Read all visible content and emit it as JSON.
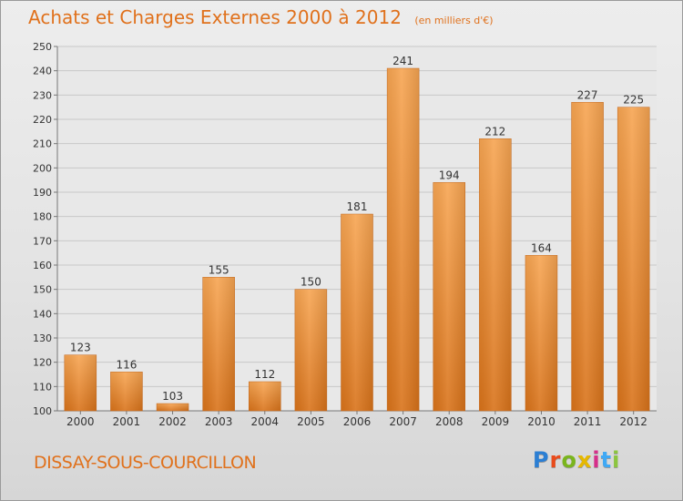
{
  "header": {
    "title": "Achats et Charges Externes 2000 à 2012",
    "subtitle": "(en milliers d'€)"
  },
  "footer": {
    "place": "DISSAY-SOUS-COURCILLON",
    "brand": "Proxiti",
    "brand_colors": [
      "#2b7fd4",
      "#e94b1b",
      "#7ab51d",
      "#e6b800",
      "#d62f8a",
      "#3fa9f5",
      "#8cc63f"
    ]
  },
  "chart_data": {
    "type": "bar",
    "categories": [
      "2000",
      "2001",
      "2002",
      "2003",
      "2004",
      "2005",
      "2006",
      "2007",
      "2008",
      "2009",
      "2010",
      "2011",
      "2012"
    ],
    "values": [
      123,
      116,
      103,
      155,
      112,
      150,
      181,
      241,
      194,
      212,
      164,
      227,
      225
    ],
    "title": "Achats et Charges Externes 2000 à 2012",
    "xlabel": "",
    "ylabel": "",
    "ylim": [
      100,
      250
    ],
    "yticks": [
      100,
      110,
      120,
      130,
      140,
      150,
      160,
      170,
      180,
      190,
      200,
      210,
      220,
      230,
      240,
      250
    ],
    "grid": true,
    "bar_color_top": "#f7a552",
    "bar_color_bottom": "#d9731a"
  }
}
